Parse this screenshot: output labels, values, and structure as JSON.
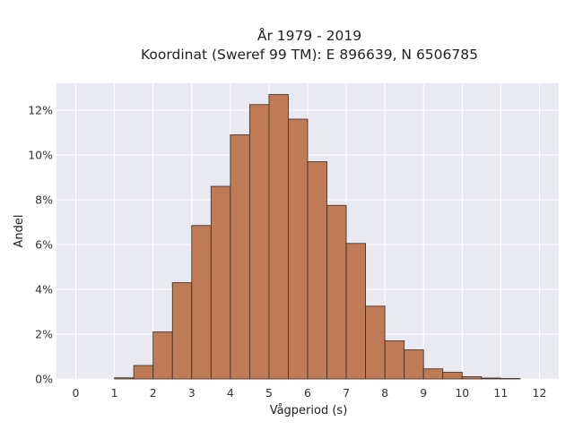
{
  "chart_data": {
    "type": "bar",
    "title_lines": [
      "År 1979 - 2019",
      "Koordinat (Sweref 99 TM): E 896639, N 6506785"
    ],
    "xlabel": "Vågperiod (s)",
    "ylabel": "Andel",
    "xlim": [
      -0.5,
      12.5
    ],
    "ylim": [
      0,
      13.2
    ],
    "x_ticks": [
      "0",
      "1",
      "2",
      "3",
      "4",
      "5",
      "6",
      "7",
      "8",
      "9",
      "10",
      "11",
      "12"
    ],
    "y_ticks": [
      "0%",
      "2%",
      "4%",
      "6%",
      "8%",
      "10%",
      "12%"
    ],
    "bin_width": 0.5,
    "bins": [
      {
        "start": 1.0,
        "value": 0.05
      },
      {
        "start": 1.5,
        "value": 0.6
      },
      {
        "start": 2.0,
        "value": 2.1
      },
      {
        "start": 2.5,
        "value": 4.3
      },
      {
        "start": 3.0,
        "value": 6.85
      },
      {
        "start": 3.5,
        "value": 8.6
      },
      {
        "start": 4.0,
        "value": 10.9
      },
      {
        "start": 4.5,
        "value": 12.25
      },
      {
        "start": 5.0,
        "value": 12.7
      },
      {
        "start": 5.5,
        "value": 11.6
      },
      {
        "start": 6.0,
        "value": 9.7
      },
      {
        "start": 6.5,
        "value": 7.75
      },
      {
        "start": 7.0,
        "value": 6.05
      },
      {
        "start": 7.5,
        "value": 3.25
      },
      {
        "start": 8.0,
        "value": 1.7
      },
      {
        "start": 8.5,
        "value": 1.3
      },
      {
        "start": 9.0,
        "value": 0.45
      },
      {
        "start": 9.5,
        "value": 0.3
      },
      {
        "start": 10.0,
        "value": 0.1
      },
      {
        "start": 10.5,
        "value": 0.04
      },
      {
        "start": 11.0,
        "value": 0.02
      }
    ],
    "bar_color": "#bf7b56",
    "grid": true
  }
}
